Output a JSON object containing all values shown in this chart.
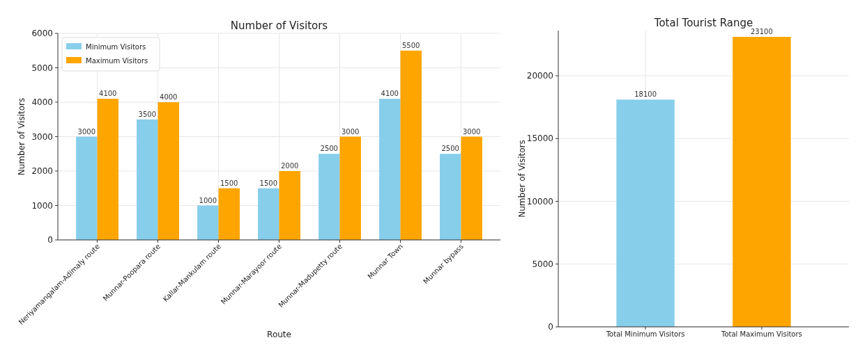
{
  "chart_data": [
    {
      "type": "bar",
      "title": "Number of Visitors",
      "xlabel": "Route",
      "ylabel": "Number of Visitors",
      "categories": [
        "Neriyamangalam-Adimaly route",
        "Munnar-Poopara route",
        "Kallar-Mankulam route",
        "Munnar-Marayoor route",
        "Munnar-Madupetty route",
        "Munnar Town",
        "Munnar bypass"
      ],
      "series": [
        {
          "name": "Minimum Visitors",
          "color": "#87ceeb",
          "values": [
            3000,
            3500,
            1000,
            1500,
            2500,
            4100,
            2500
          ]
        },
        {
          "name": "Maximum Visitors",
          "color": "#ffa500",
          "values": [
            4100,
            4000,
            1500,
            2000,
            3000,
            5500,
            3000
          ]
        }
      ],
      "ylim": [
        0,
        6000
      ],
      "yticks": [
        0,
        1000,
        2000,
        3000,
        4000,
        5000,
        6000
      ],
      "grid": true,
      "legend": "top left",
      "data_labels": true
    },
    {
      "type": "bar",
      "title": "Total Tourist Range",
      "ylabel": "Number of Visitors",
      "categories": [
        "Total Minimum Visitors",
        "Total Maximum Visitors"
      ],
      "values": [
        18100,
        23100
      ],
      "colors": [
        "#87ceeb",
        "#ffa500"
      ],
      "ylim": [
        0,
        23600
      ],
      "yticks": [
        0,
        5000,
        10000,
        15000,
        20000
      ],
      "grid": true,
      "data_labels": true
    }
  ]
}
